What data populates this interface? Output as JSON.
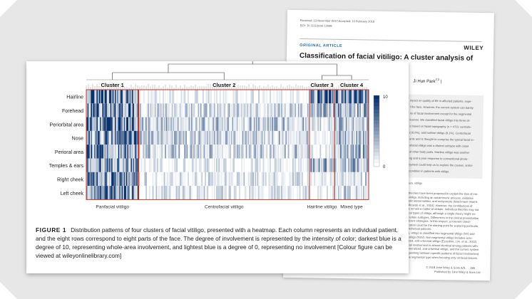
{
  "article": {
    "received": "Received: 13 November 2017    Accepted: 10 February 2018",
    "doi": "DOI: 10.1111/pcmr.12699",
    "section": "ORIGINAL ARTICLE",
    "publisher_logo": "WILEY",
    "title": "Classification of facial vitiligo: A cluster analysis of 473 patients",
    "author_fragment": "Ji Hun Park",
    "author_sup": "2,3",
    "abstract_lines": [
      "mpact on quality of life in affected patients, espe-",
      "f the face. However, the current system can barely",
      "ns of facial involvement except for the segmental",
      "lesions. We classified facial vitiligo into three cli-",
      "s based on facial topography (n = 473): centrofa-",
      "(18.0%), and hairline vitiligo (9.1%). Centrofacial",
      "ents and is thought to comprise the typical facial in-",
      "ofacial vitiligo was a distinct subtype with onset",
      "of other body parts. Hairline vitiligo was another",
      "ng and a poor response to conventional photo-",
      "system could help us to explore the causes, antici-",
      "condition in patients with vitiligo."
    ],
    "keywords_fragment": "ure, vitiligo",
    "body_lines": [
      "theories have been proposed to explain the loss of me-",
      "vitiligo, including an autoimmune process, oxidative",
      "etic abnormalities, and melanocyte detachment (Harris",
      "Picardo et al., 2015). However, the contributions of",
      "s remain a matter of debate. Individual theories may not",
      "cal types of vitiligo, although a single theory might ex-",
      "certain subtypes. Differences in the clinical presentation",
      "ferent etiologies. In this respect, a relevant classi-",
      "cation could be the starting point for exploring particular",
      "individual patients.",
      "o, vitiligo is classified into segmental vitiligo (SV) and",
      "vitiligo (NSV). Non-segmental vitiligo includes acro-",
      "ized, and universal vitiligo (Ezzedine, Lim, et al., 2012).",
      "cial involvement is almost identical among patients with",
      "eneralized, and universal vitiligo, and the current system",
      "iguishing between specific patterns of facial involvement",
      "he segmental type when focusing only on facial lesions."
    ],
    "copyright": "© 2018 John Wiley & Sons A/S.",
    "publisher_line": "Published by John Wiley & Sons Ltd",
    "page_number": "385"
  },
  "colors": {
    "heat_dark": "#08306b",
    "heat_light": "#ffffff",
    "cluster_box": "#c0392b",
    "figure_label": "#1f1f1f",
    "article_section": "#2b6aa3"
  },
  "chart_data": {
    "type": "heatmap",
    "rows": [
      "Hairline",
      "Forehead",
      "Periorbital area",
      "Nose",
      "Perioral area",
      "Temples & ears",
      "Right cheek",
      "Left cheek"
    ],
    "scale": [
      0,
      10
    ],
    "colorbar_ticks": [
      "10",
      "0"
    ],
    "clusters": [
      {
        "name": "Cluster 1",
        "label": "Panfacial vitiligo",
        "columns": 46,
        "row_means": [
          0.75,
          0.78,
          0.72,
          0.62,
          0.68,
          0.58,
          0.7,
          0.7
        ]
      },
      {
        "name": "Cluster 2",
        "label": "Centrofacial vitiligo",
        "columns": 150,
        "row_means": [
          0.05,
          0.2,
          0.3,
          0.25,
          0.25,
          0.08,
          0.12,
          0.12
        ]
      },
      {
        "name": "Cluster 3",
        "label": "Hairline vitiligo",
        "columns": 22,
        "row_means": [
          0.8,
          0.45,
          0.12,
          0.05,
          0.05,
          0.4,
          0.05,
          0.05
        ]
      },
      {
        "name": "Cluster 4",
        "label": "Mixed type",
        "columns": 30,
        "row_means": [
          0.7,
          0.5,
          0.45,
          0.4,
          0.45,
          0.35,
          0.25,
          0.25
        ]
      }
    ]
  },
  "caption": {
    "label": "FIGURE 1",
    "text": "Distribution patterns of four clusters of facial vitiligo, presented with a heatmap. Each column represents an individual patient, and the eight rows correspond to eight parts of the face. The degree of involvement is represented by the intensity of color; darkest blue is a degree of 10, representing whole-area involvement, and lightest blue is a degree of 0, representing no involvement [Colour figure can be viewed at wileyonlinelibrary.com]"
  }
}
